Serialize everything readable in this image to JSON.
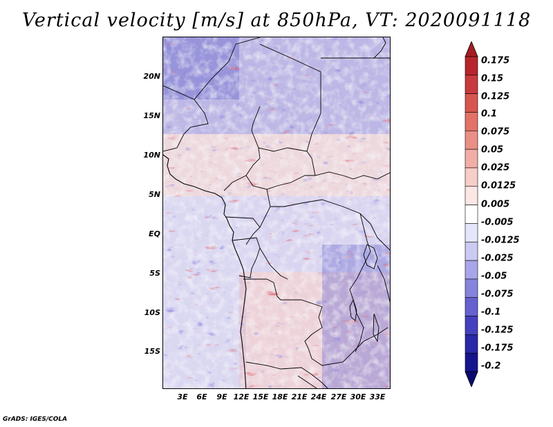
{
  "title": "Vertical velocity [m/s] at 850hPa, VT: 2020091118",
  "footer": "GrADS: IGES/COLA",
  "map": {
    "region": "Central Africa",
    "variable": "Vertical velocity",
    "units": "m/s",
    "level": "850hPa",
    "valid_time": "2020091118"
  },
  "axes": {
    "lat_labels": [
      "20N",
      "15N",
      "10N",
      "5N",
      "EQ",
      "5S",
      "10S",
      "15S"
    ],
    "lon_labels": [
      "3E",
      "6E",
      "9E",
      "12E",
      "15E",
      "18E",
      "21E",
      "24E",
      "27E",
      "30E",
      "33E"
    ]
  },
  "colorbar": {
    "labels": [
      "0.175",
      "0.15",
      "0.125",
      "0.1",
      "0.075",
      "0.05",
      "0.025",
      "0.0125",
      "0.005",
      "-0.005",
      "-0.0125",
      "-0.025",
      "-0.05",
      "-0.075",
      "-0.1",
      "-0.125",
      "-0.175",
      "-0.2"
    ],
    "colors": [
      "#a51c24",
      "#b8242c",
      "#c93a3e",
      "#d8554f",
      "#e27268",
      "#ea8f85",
      "#f1aea6",
      "#f7cdc8",
      "#fbe7e4",
      "#ffffff",
      "#e6e6fb",
      "#cbcaf2",
      "#a8a6e8",
      "#8683dc",
      "#6561cf",
      "#4440bf",
      "#2a27a8",
      "#16148c",
      "#0a0a6e"
    ]
  }
}
